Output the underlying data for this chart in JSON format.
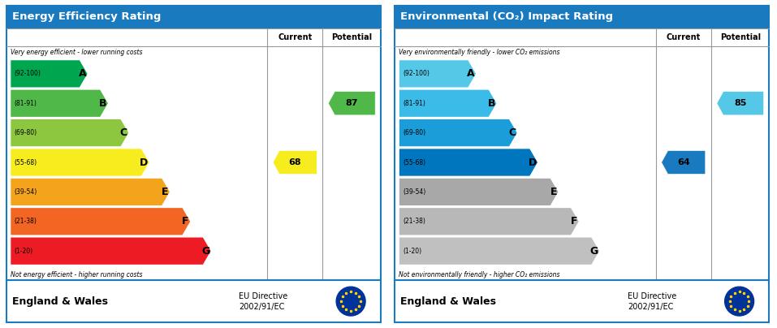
{
  "left_title": "Energy Efficiency Rating",
  "right_title": "Environmental (CO₂) Impact Rating",
  "header_bg": "#1a7abf",
  "header_text_color": "#ffffff",
  "bands": [
    "A",
    "B",
    "C",
    "D",
    "E",
    "F",
    "G"
  ],
  "ranges": [
    "(92-100)",
    "(81-91)",
    "(69-80)",
    "(55-68)",
    "(39-54)",
    "(21-38)",
    "(1-20)"
  ],
  "epc_colors": [
    "#00a550",
    "#50b848",
    "#8dc63f",
    "#f7ec1d",
    "#f4a31d",
    "#f26522",
    "#ed1c24"
  ],
  "eco_colors": [
    "#55c8e8",
    "#3bbce8",
    "#1a9dd9",
    "#0076bf",
    "#a8a8a8",
    "#b8b8b8",
    "#c0c0c0"
  ],
  "current_epc": 68,
  "potential_epc": 87,
  "current_epc_band": "D",
  "potential_epc_band": "B",
  "current_eco": 64,
  "potential_eco": 85,
  "current_eco_band": "D",
  "potential_eco_band": "B",
  "current_color_epc": "#f7ec1d",
  "potential_color_epc": "#50b848",
  "current_color_eco": "#1a7abf",
  "potential_color_eco": "#55c8e8",
  "footer_text1": "England & Wales",
  "footer_text2": "EU Directive\n2002/91/EC",
  "eu_star_color": "#003399",
  "eu_star_fill": "#ffcc00",
  "top_label_epc": "Very energy efficient - lower running costs",
  "bottom_label_epc": "Not energy efficient - higher running costs",
  "top_label_eco": "Very environmentally friendly - lower CO₂ emissions",
  "bottom_label_eco": "Not environmentally friendly - higher CO₂ emissions",
  "col_header_current": "Current",
  "col_header_potential": "Potential",
  "outer_border_color": "#1a7abf",
  "inner_border_color": "#999999",
  "gap_color": "#ffffff"
}
